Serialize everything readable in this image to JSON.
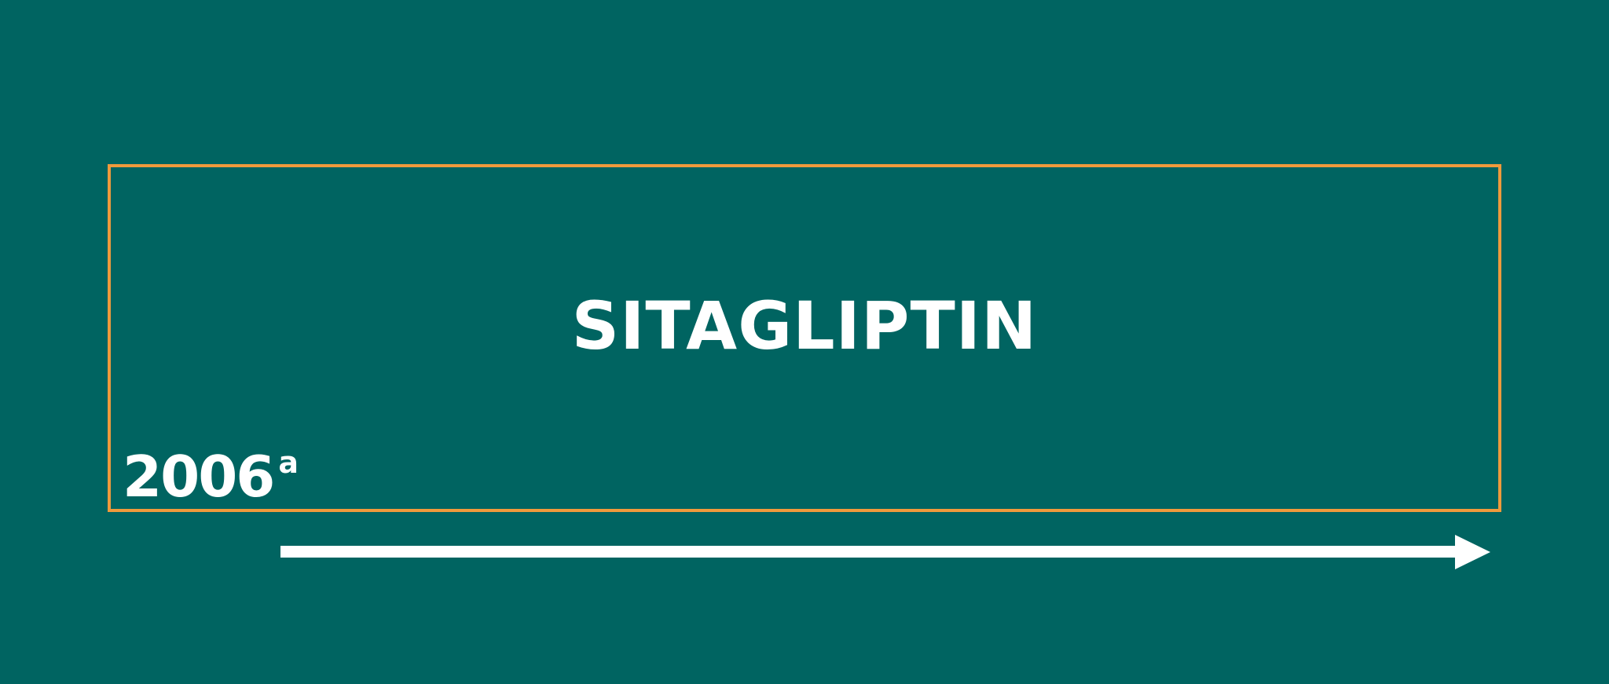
{
  "title": "SITAGLIPTIN",
  "year": "2006",
  "year_superscript": "a",
  "colors": {
    "background": "#006461",
    "frame": "#EF9A3C",
    "text": "#FFFFFF",
    "arrow": "#FFFFFF"
  }
}
